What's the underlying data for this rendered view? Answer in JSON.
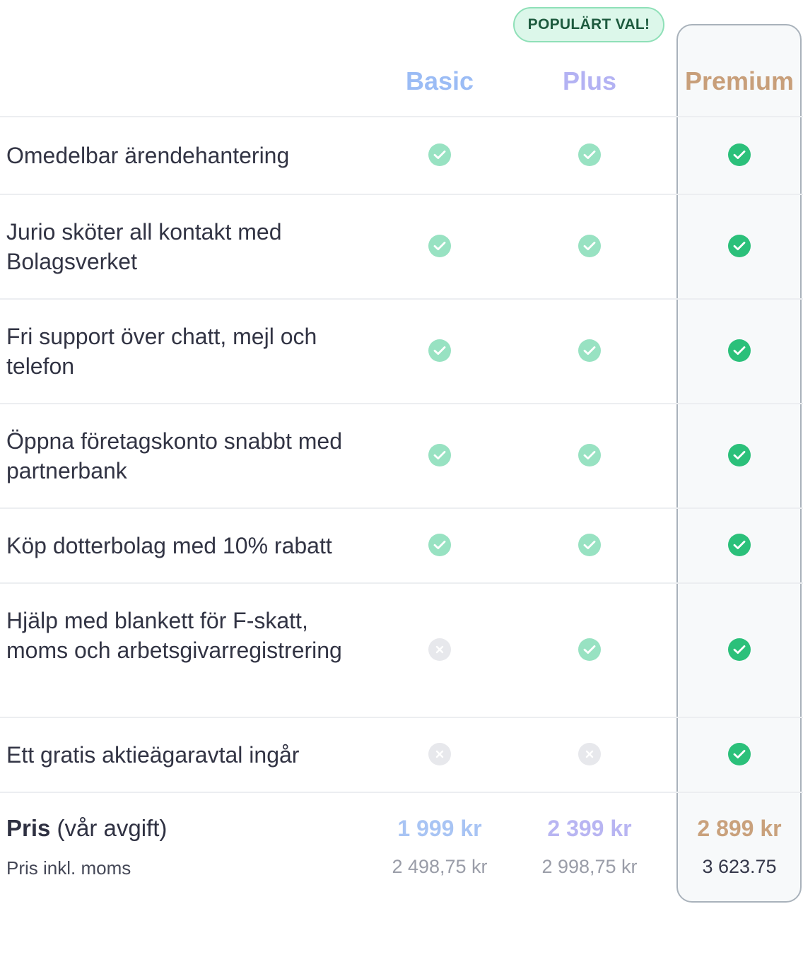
{
  "badge": "POPULÄRT VAL!",
  "plans": {
    "basic": "Basic",
    "plus": "Plus",
    "premium": "Premium"
  },
  "features": [
    {
      "label": "Omedelbar ärendehantering",
      "basic": "check",
      "plus": "check",
      "premium": "check"
    },
    {
      "label": "Jurio sköter all kontakt med Bolagsverket",
      "basic": "check",
      "plus": "check",
      "premium": "check"
    },
    {
      "label": "Fri support över chatt, mejl och telefon",
      "basic": "check",
      "plus": "check",
      "premium": "check"
    },
    {
      "label": "Öppna företagskonto snabbt med partnerbank",
      "basic": "check",
      "plus": "check",
      "premium": "check"
    },
    {
      "label": "Köp dotterbolag med 10% rabatt",
      "basic": "check",
      "plus": "check",
      "premium": "check"
    },
    {
      "label": "Hjälp med blankett för F-skatt, moms och arbetsgivarregistrering",
      "basic": "cross",
      "plus": "check",
      "premium": "check"
    },
    {
      "label": "Ett gratis aktieägaravtal ingår",
      "basic": "cross",
      "plus": "cross",
      "premium": "check"
    }
  ],
  "price": {
    "label_bold": "Pris",
    "label_rest": " (vår avgift)",
    "sub_label": "Pris inkl. moms",
    "basic": "1 999 kr",
    "plus": "2 399 kr",
    "premium": "2 899 kr",
    "basic_vat": "2 498,75 kr",
    "plus_vat": "2 998,75 kr",
    "premium_vat": "3 623.75"
  },
  "colors": {
    "check_light": "#98e2c2",
    "check_strong": "#2bc07a",
    "cross": "#e7e8ec",
    "basic": "#9bbcf5",
    "plus": "#b3b2f3",
    "premium": "#c89f7a"
  },
  "icons": {
    "included": "check-circle-icon",
    "excluded": "x-circle-icon"
  }
}
